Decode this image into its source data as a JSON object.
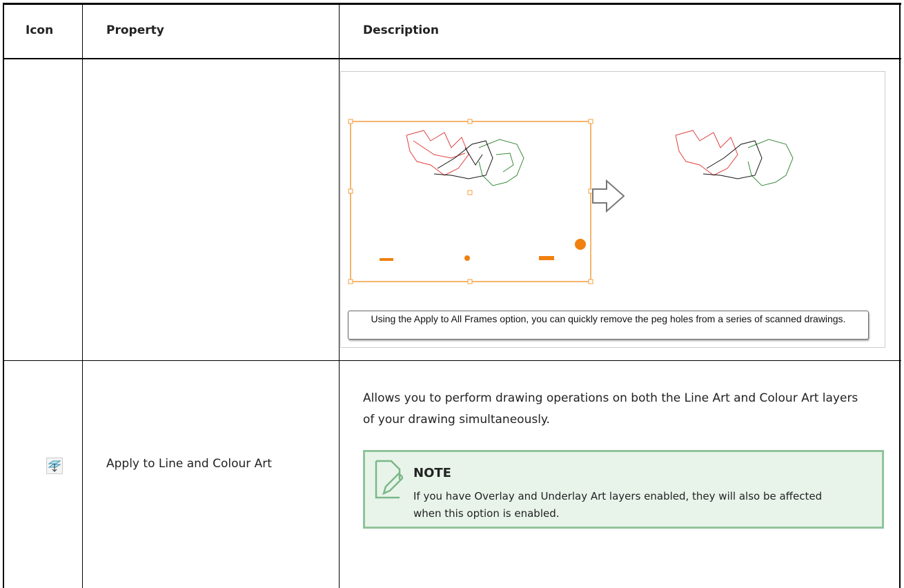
{
  "table": {
    "header": [
      "Icon",
      "Property",
      "Description"
    ],
    "rows": [
      {
        "caption": "Using the Apply to All Frames option, you can quickly remove the peg holes from a series of scanned drawings."
      },
      {
        "property": "Apply to Line and Colour Art",
        "description": "Allows you to perform drawing operations on both the Line Art and Colour Art layers of your drawing simultaneously.",
        "note": {
          "title": "NOTE",
          "text": "If you have Overlay and Underlay Art layers enabled, they will also be affected when this option is enabled."
        }
      }
    ]
  }
}
